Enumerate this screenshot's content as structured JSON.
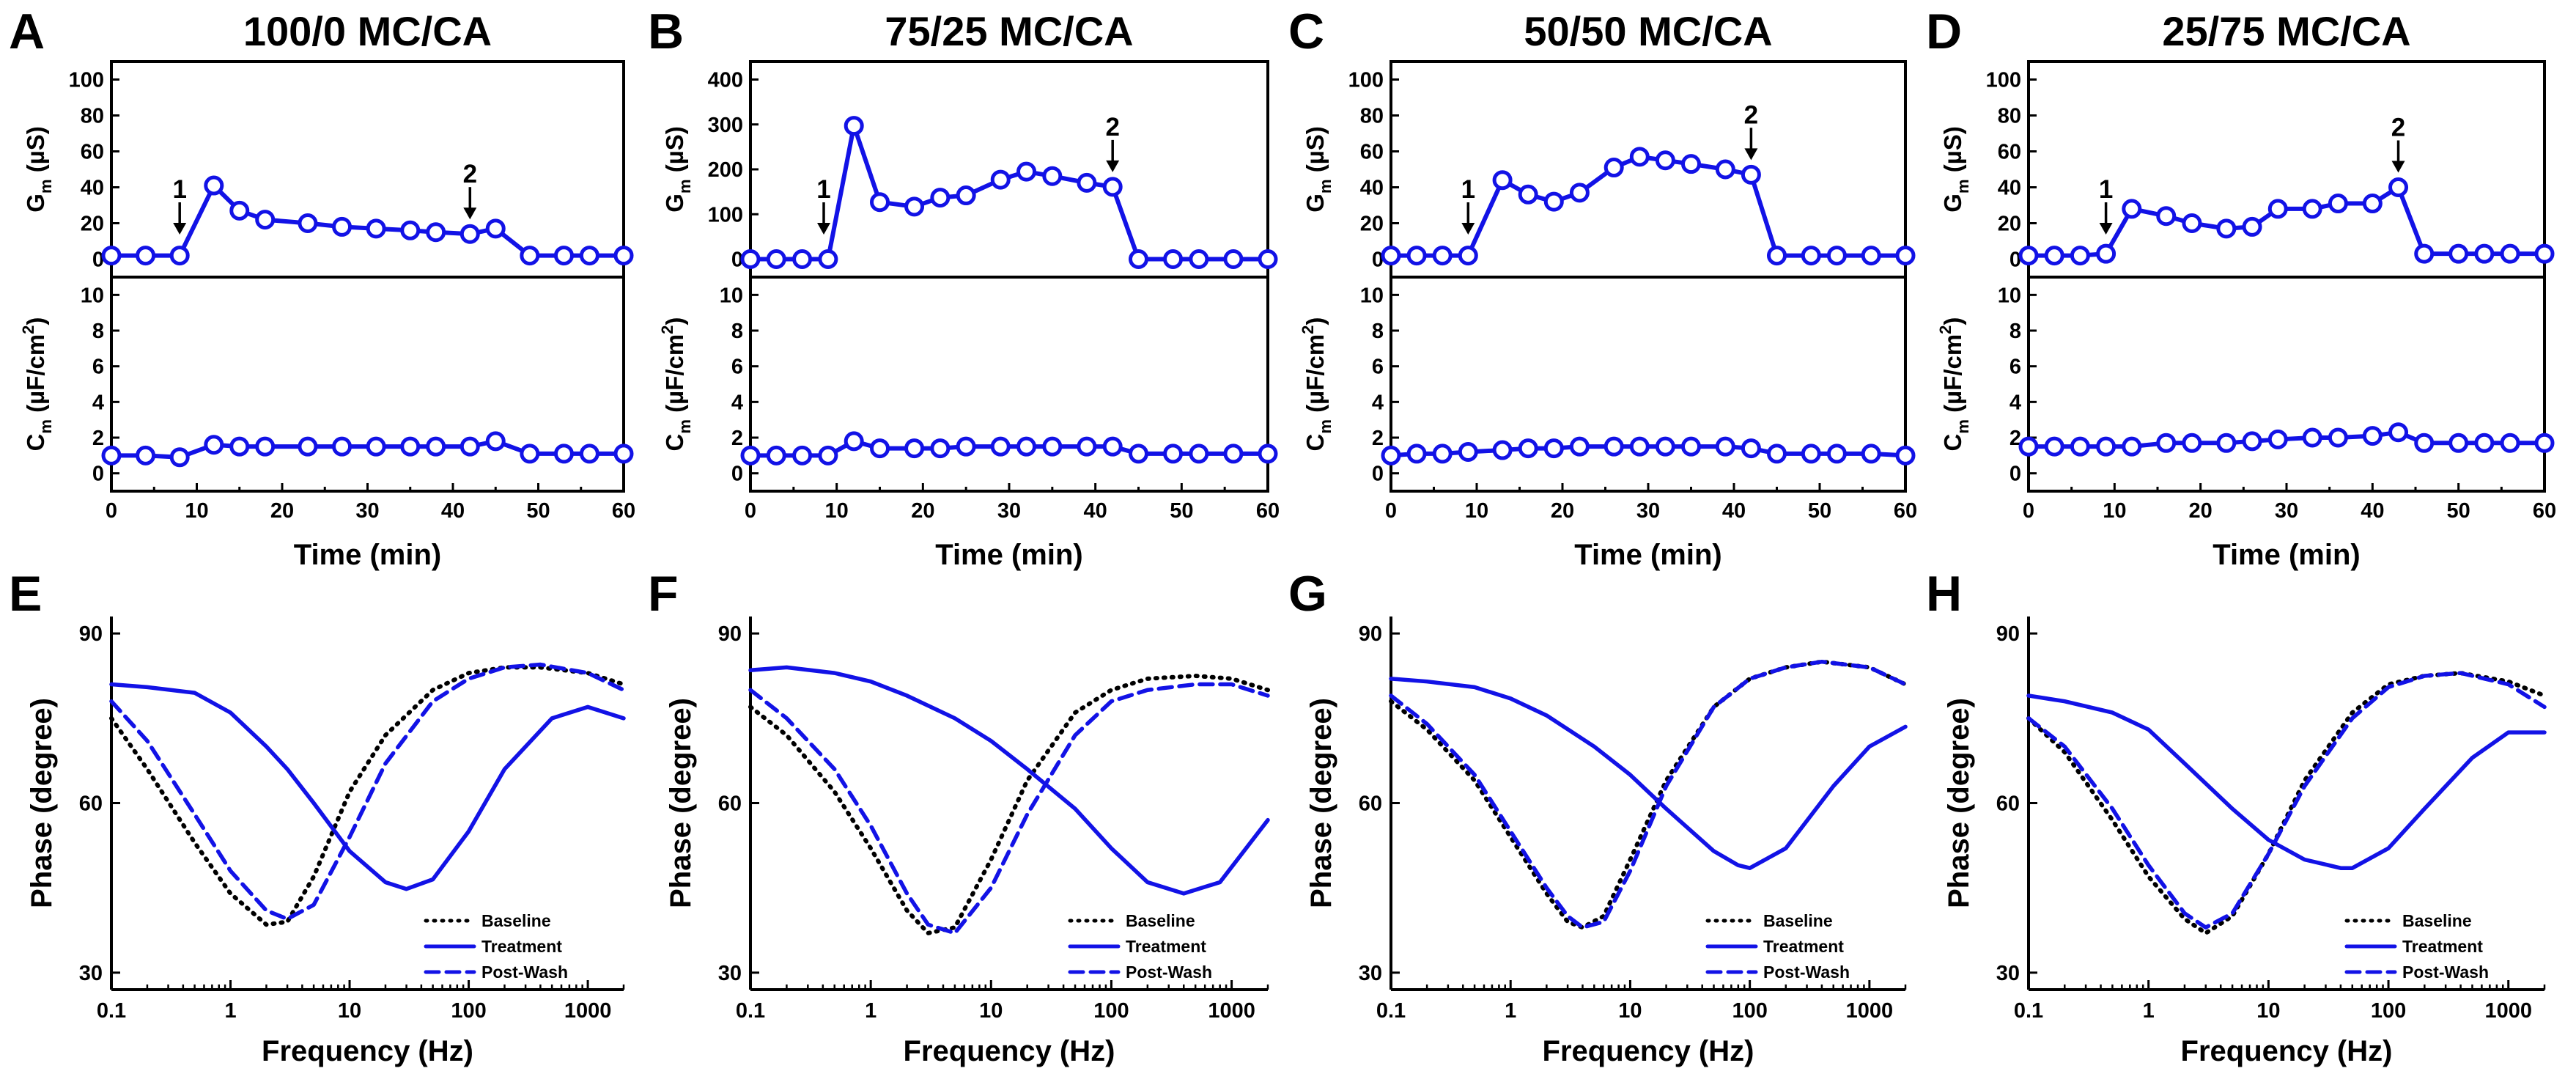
{
  "colors": {
    "treatment": "#1212e6",
    "baseline": "#000000",
    "axes": "#000000",
    "background": "#ffffff"
  },
  "top_labels": {
    "time_axis_title": "Time (min)",
    "gm_label": {
      "sym": "G",
      "sub": "m",
      "unit": " (µS)"
    },
    "cm_label": {
      "sym": "C",
      "sub": "m",
      "unit": " (µF/cm",
      "sup": "2",
      "close": ")"
    }
  },
  "bottom_labels": {
    "x_title": "Frequency (Hz)",
    "y_title": "Phase (degree)"
  },
  "legend": {
    "baseline": "Baseline",
    "treatment": "Treatment",
    "postwash": "Post-Wash"
  },
  "arrows": {
    "first": "1",
    "second": "2"
  },
  "chart_data": [
    {
      "panel": "A",
      "title": "100/0 MC/CA",
      "type": "line",
      "x": [
        0,
        4,
        8,
        12,
        15,
        18,
        23,
        27,
        31,
        35,
        38,
        42,
        45,
        49,
        53,
        56,
        60
      ],
      "gm": [
        2,
        2,
        2,
        41,
        27,
        22,
        20,
        18,
        17,
        16,
        15,
        14,
        17,
        2,
        2,
        2,
        2
      ],
      "cm": [
        1.0,
        1.0,
        0.9,
        1.6,
        1.5,
        1.5,
        1.5,
        1.5,
        1.5,
        1.5,
        1.5,
        1.5,
        1.8,
        1.1,
        1.1,
        1.1,
        1.1
      ],
      "gm_ylim": [
        -10,
        110
      ],
      "gm_ticks": [
        0,
        20,
        40,
        60,
        80,
        100
      ],
      "cm_ylim": [
        -1,
        11
      ],
      "cm_ticks": [
        0,
        2,
        4,
        6,
        8,
        10
      ],
      "xlim": [
        0,
        60
      ],
      "x_ticks": [
        0,
        10,
        20,
        30,
        40,
        50,
        60
      ],
      "arrow1_x": 8,
      "arrow2_x": 42
    },
    {
      "panel": "B",
      "title": "75/25 MC/CA",
      "type": "line",
      "x": [
        0,
        3,
        6,
        9,
        12,
        15,
        19,
        22,
        25,
        29,
        32,
        35,
        39,
        42,
        45,
        49,
        52,
        56,
        60
      ],
      "gm": [
        0,
        0,
        0,
        0,
        297,
        127,
        117,
        137,
        142,
        177,
        195,
        185,
        170,
        161,
        0,
        0,
        0,
        0,
        0
      ],
      "cm": [
        1.0,
        1.0,
        1.0,
        1.0,
        1.8,
        1.4,
        1.4,
        1.4,
        1.5,
        1.5,
        1.5,
        1.5,
        1.5,
        1.5,
        1.1,
        1.1,
        1.1,
        1.1,
        1.1
      ],
      "gm_ylim": [
        -40,
        440
      ],
      "gm_ticks": [
        0,
        100,
        200,
        300,
        400
      ],
      "cm_ylim": [
        -1,
        11
      ],
      "cm_ticks": [
        0,
        2,
        4,
        6,
        8,
        10
      ],
      "xlim": [
        0,
        60
      ],
      "x_ticks": [
        0,
        10,
        20,
        30,
        40,
        50,
        60
      ],
      "arrow1_x": 8.5,
      "arrow2_x": 42
    },
    {
      "panel": "C",
      "title": "50/50 MC/CA",
      "type": "line",
      "x": [
        0,
        3,
        6,
        9,
        13,
        16,
        19,
        22,
        26,
        29,
        32,
        35,
        39,
        42,
        45,
        49,
        52,
        56,
        60
      ],
      "gm": [
        2,
        2,
        2,
        2,
        44,
        36,
        32,
        37,
        51,
        57,
        55,
        53,
        50,
        47,
        2,
        2,
        2,
        2,
        2
      ],
      "cm": [
        1.0,
        1.1,
        1.1,
        1.2,
        1.3,
        1.4,
        1.4,
        1.5,
        1.5,
        1.5,
        1.5,
        1.5,
        1.5,
        1.4,
        1.1,
        1.1,
        1.1,
        1.1,
        1.0
      ],
      "gm_ylim": [
        -10,
        110
      ],
      "gm_ticks": [
        0,
        20,
        40,
        60,
        80,
        100
      ],
      "cm_ylim": [
        -1,
        11
      ],
      "cm_ticks": [
        0,
        2,
        4,
        6,
        8,
        10
      ],
      "xlim": [
        0,
        60
      ],
      "x_ticks": [
        0,
        10,
        20,
        30,
        40,
        50,
        60
      ],
      "arrow1_x": 9,
      "arrow2_x": 42
    },
    {
      "panel": "D",
      "title": "25/75 MC/CA",
      "type": "line",
      "x": [
        0,
        3,
        6,
        9,
        12,
        16,
        19,
        23,
        26,
        29,
        33,
        36,
        40,
        43,
        46,
        50,
        53,
        56,
        60
      ],
      "gm": [
        2,
        2,
        2,
        3,
        28,
        24,
        20,
        17,
        18,
        28,
        28,
        31,
        31,
        40,
        3,
        3,
        3,
        3,
        3
      ],
      "cm": [
        1.5,
        1.5,
        1.5,
        1.5,
        1.5,
        1.7,
        1.7,
        1.7,
        1.8,
        1.9,
        2.0,
        2.0,
        2.1,
        2.3,
        1.7,
        1.7,
        1.7,
        1.7,
        1.7
      ],
      "gm_ylim": [
        -10,
        110
      ],
      "gm_ticks": [
        0,
        20,
        40,
        60,
        80,
        100
      ],
      "cm_ylim": [
        -1,
        11
      ],
      "cm_ticks": [
        0,
        2,
        4,
        6,
        8,
        10
      ],
      "xlim": [
        0,
        60
      ],
      "x_ticks": [
        0,
        10,
        20,
        30,
        40,
        50,
        60
      ],
      "arrow1_x": 9,
      "arrow2_x": 43
    },
    {
      "panel": "E",
      "type": "line",
      "x_scale": "log",
      "xlim": [
        0.1,
        2000
      ],
      "x_ticks": [
        0.1,
        1,
        10,
        100,
        1000
      ],
      "x_tick_labels": [
        "0.1",
        "1",
        "10",
        "100",
        "1000"
      ],
      "ylim": [
        27,
        93
      ],
      "y_ticks": [
        30,
        60,
        90
      ],
      "series": [
        {
          "name": "Baseline",
          "style": "dotted",
          "freq": [
            0.1,
            0.2,
            0.5,
            1,
            2,
            3,
            5,
            10,
            20,
            50,
            100,
            200,
            400,
            1000,
            2000
          ],
          "phase": [
            75,
            66,
            53,
            44,
            38.5,
            39,
            47,
            62,
            72,
            80,
            83,
            84,
            84,
            83,
            81
          ]
        },
        {
          "name": "Treatment",
          "style": "solid",
          "freq": [
            0.1,
            0.2,
            0.5,
            1,
            2,
            3,
            5,
            10,
            20,
            30,
            50,
            100,
            200,
            500,
            1000,
            2000
          ],
          "phase": [
            81,
            80.5,
            79.5,
            76,
            70,
            66,
            60,
            51.5,
            46,
            44.8,
            46.5,
            55,
            66,
            75,
            77,
            75
          ]
        },
        {
          "name": "Post-Wash",
          "style": "dashed",
          "freq": [
            0.1,
            0.2,
            0.5,
            1,
            2,
            3,
            5,
            10,
            20,
            50,
            100,
            200,
            400,
            1000,
            2000
          ],
          "phase": [
            78,
            71,
            58,
            48,
            41,
            39.5,
            42,
            54,
            67,
            78,
            82,
            84,
            84.5,
            83,
            80
          ]
        }
      ]
    },
    {
      "panel": "F",
      "type": "line",
      "x_scale": "log",
      "xlim": [
        0.1,
        2000
      ],
      "x_ticks": [
        0.1,
        1,
        10,
        100,
        1000
      ],
      "x_tick_labels": [
        "0.1",
        "1",
        "10",
        "100",
        "1000"
      ],
      "ylim": [
        27,
        93
      ],
      "y_ticks": [
        30,
        60,
        90
      ],
      "series": [
        {
          "name": "Baseline",
          "style": "dotted",
          "freq": [
            0.1,
            0.2,
            0.5,
            1,
            2,
            3,
            5,
            10,
            20,
            50,
            100,
            200,
            500,
            1000,
            2000
          ],
          "phase": [
            77,
            72,
            62,
            52,
            41,
            37,
            38,
            50,
            64,
            76,
            80,
            82,
            82.5,
            82,
            80
          ]
        },
        {
          "name": "Treatment",
          "style": "solid",
          "freq": [
            0.1,
            0.2,
            0.5,
            1,
            2,
            5,
            10,
            20,
            50,
            100,
            200,
            400,
            800,
            2000
          ],
          "phase": [
            83.5,
            84,
            83,
            81.5,
            79,
            75,
            71,
            66,
            59,
            52,
            46,
            44,
            46,
            57
          ]
        },
        {
          "name": "Post-Wash",
          "style": "dashed",
          "freq": [
            0.1,
            0.2,
            0.5,
            1,
            2,
            3,
            5,
            10,
            20,
            50,
            100,
            200,
            500,
            1000,
            2000
          ],
          "phase": [
            80,
            75,
            66,
            56,
            44,
            38.5,
            37,
            45,
            58,
            72,
            78,
            80,
            81,
            81,
            79
          ]
        }
      ]
    },
    {
      "panel": "G",
      "type": "line",
      "x_scale": "log",
      "xlim": [
        0.1,
        2000
      ],
      "x_ticks": [
        0.1,
        1,
        10,
        100,
        1000
      ],
      "x_tick_labels": [
        "0.1",
        "1",
        "10",
        "100",
        "1000"
      ],
      "ylim": [
        27,
        93
      ],
      "y_ticks": [
        30,
        60,
        90
      ],
      "series": [
        {
          "name": "Baseline",
          "style": "dotted",
          "freq": [
            0.1,
            0.2,
            0.5,
            1,
            2,
            3,
            4,
            6,
            10,
            20,
            50,
            100,
            200,
            400,
            1000,
            2000
          ],
          "phase": [
            78,
            73,
            64,
            54,
            44,
            39,
            38,
            40,
            50,
            64,
            77,
            82,
            84,
            85,
            84,
            81
          ]
        },
        {
          "name": "Treatment",
          "style": "solid",
          "freq": [
            0.1,
            0.2,
            0.5,
            1,
            2,
            5,
            10,
            20,
            50,
            80,
            100,
            200,
            500,
            1000,
            2000
          ],
          "phase": [
            82,
            81.5,
            80.5,
            78.5,
            75.5,
            70,
            65,
            59,
            51.5,
            49,
            48.5,
            52,
            63,
            70,
            73.5
          ]
        },
        {
          "name": "Post-Wash",
          "style": "dashed",
          "freq": [
            0.1,
            0.2,
            0.5,
            1,
            2,
            3,
            4,
            6,
            10,
            20,
            50,
            100,
            200,
            400,
            1000,
            2000
          ],
          "phase": [
            79,
            74,
            65,
            55,
            45,
            40,
            38,
            39,
            48,
            63,
            77,
            82,
            84,
            85,
            84,
            81
          ]
        }
      ]
    },
    {
      "panel": "H",
      "type": "line",
      "x_scale": "log",
      "xlim": [
        0.1,
        2000
      ],
      "x_ticks": [
        0.1,
        1,
        10,
        100,
        1000
      ],
      "x_tick_labels": [
        "0.1",
        "1",
        "10",
        "100",
        "1000"
      ],
      "ylim": [
        27,
        93
      ],
      "y_ticks": [
        30,
        60,
        90
      ],
      "series": [
        {
          "name": "Baseline",
          "style": "dotted",
          "freq": [
            0.1,
            0.2,
            0.5,
            1,
            2,
            3,
            5,
            10,
            20,
            50,
            100,
            200,
            400,
            1000,
            2000
          ],
          "phase": [
            75,
            69,
            57,
            47,
            39.5,
            37,
            40,
            51,
            64,
            76,
            81,
            82.5,
            83,
            81.5,
            79
          ]
        },
        {
          "name": "Treatment",
          "style": "solid",
          "freq": [
            0.1,
            0.2,
            0.5,
            1,
            2,
            5,
            10,
            20,
            40,
            50,
            100,
            200,
            500,
            1000,
            2000
          ],
          "phase": [
            79,
            78,
            76,
            73,
            67,
            59,
            53.5,
            50,
            48.5,
            48.5,
            52,
            59,
            68,
            72.5,
            72.5
          ]
        },
        {
          "name": "Post-Wash",
          "style": "dashed",
          "freq": [
            0.1,
            0.2,
            0.5,
            1,
            2,
            3,
            5,
            10,
            20,
            50,
            100,
            200,
            400,
            1000,
            2000
          ],
          "phase": [
            75,
            70,
            59,
            49,
            40.5,
            38,
            40.5,
            51,
            63,
            75,
            80.5,
            82.5,
            83,
            81,
            77
          ]
        }
      ]
    }
  ]
}
